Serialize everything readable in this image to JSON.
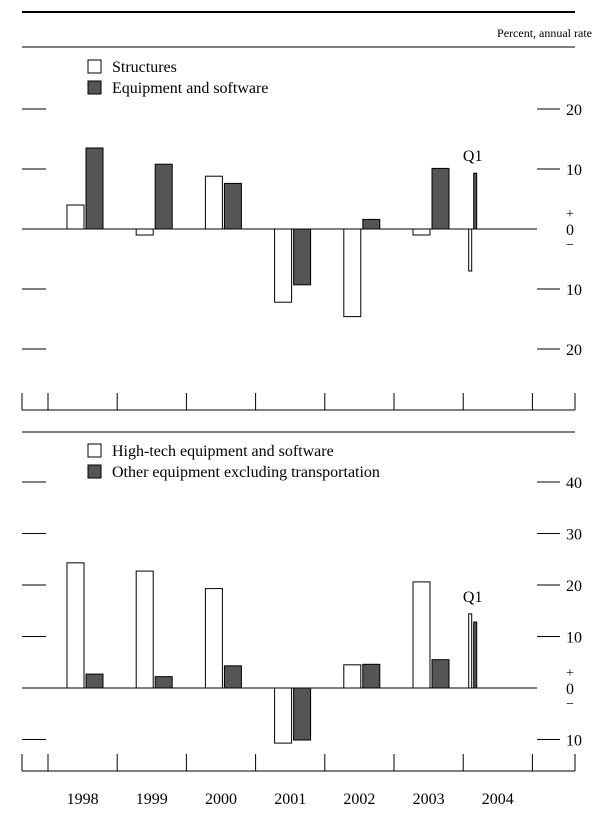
{
  "header": {
    "unit_label": "Percent, annual rate"
  },
  "chart_data": [
    {
      "type": "bar",
      "categories": [
        "1998",
        "1999",
        "2000",
        "2001",
        "2002",
        "2003",
        "2004"
      ],
      "ylim": [
        -30,
        20
      ],
      "y_ticks": [
        -20,
        -10,
        0,
        10,
        20
      ],
      "y_tick_labels": [
        "20",
        "10",
        "0",
        "10",
        "20"
      ],
      "zero_markers": {
        "plus": "+",
        "minus": "−"
      },
      "annotation": "Q1",
      "legend_position": "top-left",
      "series": [
        {
          "name": "Structures",
          "color": "#ffffff",
          "values": [
            4.0,
            -1.0,
            8.8,
            -12.2,
            -14.6,
            -1.0,
            -7.0
          ]
        },
        {
          "name": "Equipment and software",
          "color": "#555555",
          "values": [
            13.5,
            10.8,
            7.6,
            -9.3,
            1.6,
            10.1,
            9.3
          ]
        }
      ]
    },
    {
      "type": "bar",
      "categories": [
        "1998",
        "1999",
        "2000",
        "2001",
        "2002",
        "2003",
        "2004"
      ],
      "ylim": [
        -15,
        45
      ],
      "y_ticks": [
        -10,
        0,
        10,
        20,
        30,
        40
      ],
      "y_tick_labels": [
        "10",
        "0",
        "10",
        "20",
        "30",
        "40"
      ],
      "zero_markers": {
        "plus": "+",
        "minus": "−"
      },
      "annotation": "Q1",
      "legend_position": "top-left",
      "series": [
        {
          "name": "High-tech equipment and software",
          "color": "#ffffff",
          "values": [
            24.3,
            22.7,
            19.3,
            -10.7,
            4.5,
            20.6,
            14.4
          ]
        },
        {
          "name": "Other equipment excluding transportation",
          "color": "#555555",
          "values": [
            2.7,
            2.2,
            4.3,
            -10.1,
            4.6,
            5.5,
            12.8
          ]
        }
      ]
    }
  ]
}
